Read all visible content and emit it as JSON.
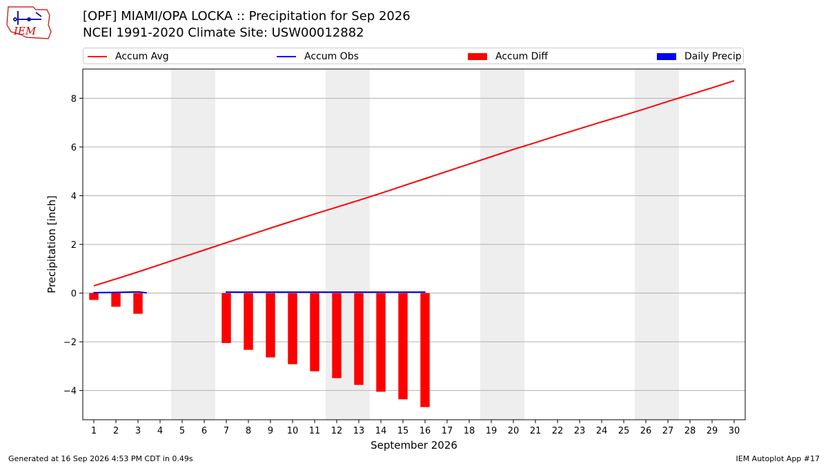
{
  "title": "[OPF] MIAMI/OPA LOCKA :: Precipitation for Sep 2026",
  "subtitle": "NCEI 1991-2020 Climate Site: USW00012882",
  "logo_text": "IEM",
  "footer_left": "Generated at 16 Sep 2026 4:53 PM CDT in 0.49s",
  "footer_right": "IEM Autoplot App #17",
  "colors": {
    "accum_avg": "#ff0000",
    "accum_obs": "#0000ff",
    "accum_diff": "#ff0000",
    "daily_precip": "#0000ff",
    "weekend_shade": "#eeeeee",
    "grid": "#b0b0b0"
  },
  "chart_data": {
    "type": "bar+line",
    "xlabel": "September 2026",
    "ylabel": "Precipitation [inch]",
    "xlim": [
      0.5,
      30.5
    ],
    "ylim": [
      -5.2,
      9.2
    ],
    "yticks": [
      -4,
      -2,
      0,
      2,
      4,
      6,
      8
    ],
    "ytick_labels": [
      "−4",
      "−2",
      "0",
      "2",
      "4",
      "6",
      "8"
    ],
    "xticks": [
      1,
      2,
      3,
      4,
      5,
      6,
      7,
      8,
      9,
      10,
      11,
      12,
      13,
      14,
      15,
      16,
      17,
      18,
      19,
      20,
      21,
      22,
      23,
      24,
      25,
      26,
      27,
      28,
      29,
      30
    ],
    "grid": "horizontal",
    "legend_position": "top",
    "weekend_spans": [
      [
        4.5,
        6.5
      ],
      [
        11.5,
        13.5
      ],
      [
        18.5,
        20.5
      ],
      [
        25.5,
        27.5
      ]
    ],
    "series": [
      {
        "name": "Accum Avg",
        "kind": "line",
        "x": [
          1,
          2,
          3,
          4,
          5,
          6,
          7,
          8,
          9,
          10,
          11,
          12,
          13,
          14,
          15,
          16,
          17,
          18,
          19,
          20,
          21,
          22,
          23,
          24,
          25,
          26,
          27,
          28,
          29,
          30
        ],
        "values": [
          0.3,
          0.58,
          0.87,
          1.17,
          1.47,
          1.77,
          2.07,
          2.37,
          2.67,
          2.96,
          3.25,
          3.53,
          3.81,
          4.1,
          4.4,
          4.7,
          5.0,
          5.3,
          5.6,
          5.9,
          6.18,
          6.47,
          6.75,
          7.03,
          7.3,
          7.58,
          7.87,
          8.15,
          8.43,
          8.72
        ]
      },
      {
        "name": "Accum Obs",
        "kind": "step",
        "segments": [
          {
            "x": [
              0.98,
              2.02,
              3.02,
              3.4
            ],
            "values": [
              0.02,
              0.03,
              0.05,
              0.01
            ]
          },
          {
            "x": [
              6.97,
              16.02
            ],
            "values": [
              0.04,
              0.04
            ]
          }
        ]
      },
      {
        "name": "Accum Diff",
        "kind": "bar",
        "x": [
          1,
          2,
          3,
          7,
          8,
          9,
          10,
          11,
          12,
          13,
          14,
          15,
          16
        ],
        "values": [
          -0.28,
          -0.56,
          -0.85,
          -2.05,
          -2.33,
          -2.64,
          -2.92,
          -3.21,
          -3.49,
          -3.77,
          -4.05,
          -4.36,
          -4.68
        ]
      },
      {
        "name": "Daily Precip",
        "kind": "bar",
        "x": [],
        "values": []
      }
    ]
  }
}
